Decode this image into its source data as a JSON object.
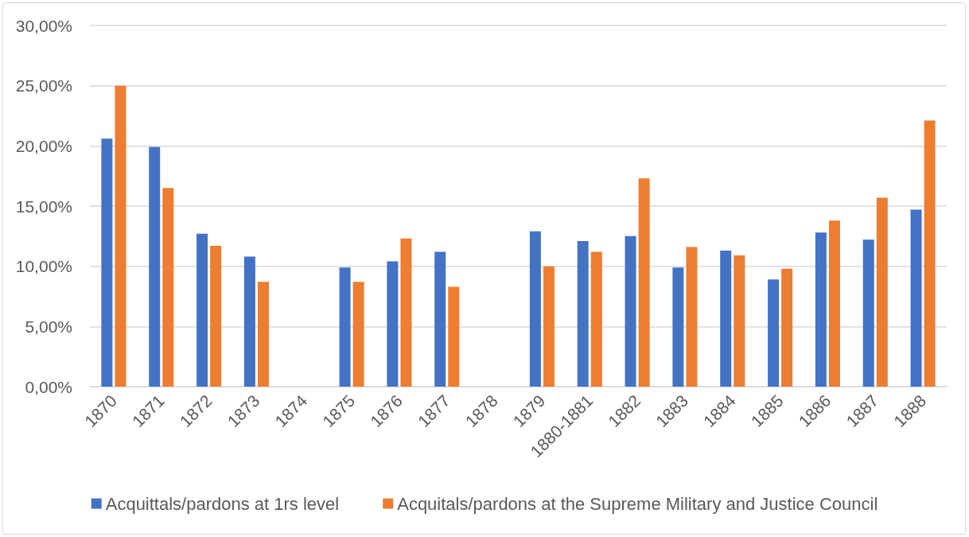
{
  "chart_data": {
    "type": "bar",
    "categories": [
      "1870",
      "1871",
      "1872",
      "1873",
      "1874",
      "1875",
      "1876",
      "1877",
      "1878",
      "1879",
      "1880-1881",
      "1882",
      "1883",
      "1884",
      "1885",
      "1886",
      "1887",
      "1888"
    ],
    "series": [
      {
        "name": "Acquittals/pardons at 1rs level",
        "color": "#4472c4",
        "values": [
          20.6,
          19.9,
          12.7,
          10.8,
          null,
          9.9,
          10.4,
          11.2,
          null,
          12.9,
          12.1,
          12.5,
          9.9,
          11.3,
          8.9,
          12.8,
          12.2,
          14.7
        ]
      },
      {
        "name": "Acquitals/pardons at the Supreme Military and Justice Council",
        "color": "#ed7d31",
        "values": [
          25.0,
          16.5,
          11.7,
          8.7,
          null,
          8.7,
          12.3,
          8.3,
          null,
          10.0,
          11.2,
          17.3,
          11.6,
          10.9,
          9.8,
          13.8,
          15.7,
          22.1
        ]
      }
    ],
    "ylim": [
      0,
      30
    ],
    "yticks": [
      {
        "value": 0,
        "label": "0,00%"
      },
      {
        "value": 5,
        "label": "5,00%"
      },
      {
        "value": 10,
        "label": "10,00%"
      },
      {
        "value": 15,
        "label": "15,00%"
      },
      {
        "value": 20,
        "label": "20,00%"
      },
      {
        "value": 25,
        "label": "25,00%"
      },
      {
        "value": 30,
        "label": "30,00%"
      }
    ],
    "grid": "y",
    "legend": "bottom"
  }
}
